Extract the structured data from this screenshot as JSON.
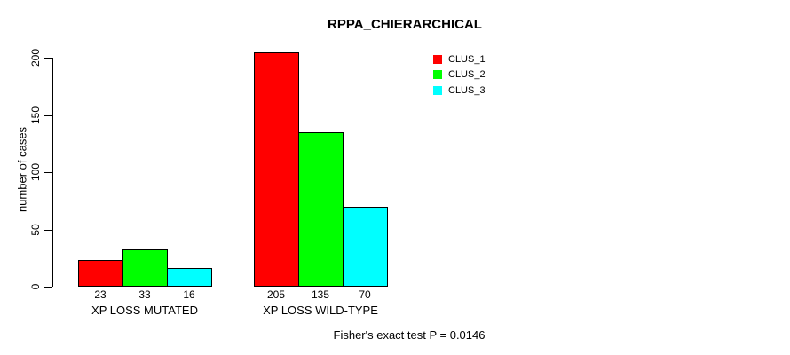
{
  "title": "RPPA_CHIERARCHICAL",
  "y_axis": {
    "label": "number of cases",
    "ticks": [
      0,
      50,
      100,
      150,
      200
    ]
  },
  "x_axis": {
    "categories": [
      "XP LOSS MUTATED",
      "XP LOSS WILD-TYPE"
    ]
  },
  "legend": {
    "items": [
      {
        "label": "CLUS_1",
        "color": "#ff0000"
      },
      {
        "label": "CLUS_2",
        "color": "#00ff00"
      },
      {
        "label": "CLUS_3",
        "color": "#00ffff"
      }
    ]
  },
  "footer": {
    "text": "Fisher's exact test P = 0.0146"
  },
  "colors": {
    "clus_1": "#ff0000",
    "clus_2": "#00ff00",
    "clus_3": "#00ffff",
    "axis": "#000000",
    "background": "#ffffff"
  },
  "chart_data": {
    "type": "bar",
    "title": "RPPA_CHIERARCHICAL",
    "categories": [
      "XP LOSS MUTATED",
      "XP LOSS WILD-TYPE"
    ],
    "series": [
      {
        "name": "CLUS_1",
        "color": "#ff0000",
        "values": [
          23,
          205
        ]
      },
      {
        "name": "CLUS_2",
        "color": "#00ff00",
        "values": [
          33,
          135
        ]
      },
      {
        "name": "CLUS_3",
        "color": "#00ffff",
        "values": [
          16,
          70
        ]
      }
    ],
    "bar_value_labels": [
      [
        23,
        33,
        16
      ],
      [
        205,
        135,
        70
      ]
    ],
    "xlabel": "",
    "ylabel": "number of cases",
    "ylim": [
      0,
      205
    ],
    "yticks": [
      0,
      50,
      100,
      150,
      200
    ],
    "grid": false,
    "legend_position": "top-right",
    "annotation": "Fisher's exact test P = 0.0146"
  }
}
